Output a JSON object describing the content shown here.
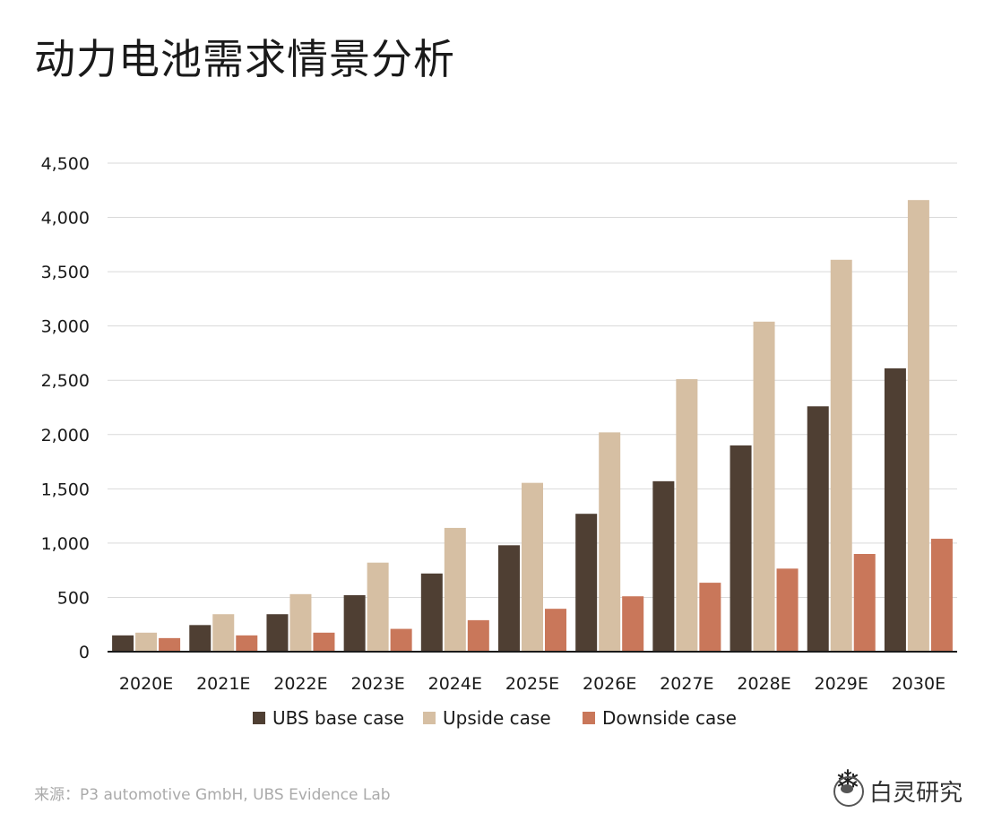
{
  "title": "动力电池需求情景分析",
  "source": "来源：P3 automotive GmbH, UBS Evidence Lab",
  "logo_text": "UBS",
  "watermark_text": "白灵研究",
  "colors": {
    "base": "#4f3f33",
    "upside": "#d6bfa3",
    "downside": "#c9775a",
    "grid": "#d9d9d9",
    "axis": "#1a1a1a",
    "logo": "#e04040"
  },
  "chart_data": {
    "type": "bar",
    "categories": [
      "2020E",
      "2021E",
      "2022E",
      "2023E",
      "2024E",
      "2025E",
      "2026E",
      "2027E",
      "2028E",
      "2029E",
      "2030E"
    ],
    "series": [
      {
        "name": "UBS base case",
        "color": "#4f3f33",
        "values": [
          150,
          245,
          345,
          520,
          720,
          980,
          1270,
          1570,
          1900,
          2260,
          2610
        ]
      },
      {
        "name": "Upside case",
        "color": "#d6bfa3",
        "values": [
          175,
          345,
          530,
          820,
          1140,
          1555,
          2020,
          2510,
          3040,
          3610,
          4160
        ]
      },
      {
        "name": "Downside case",
        "color": "#c9775a",
        "values": [
          125,
          150,
          175,
          210,
          290,
          395,
          510,
          635,
          765,
          900,
          1040
        ]
      }
    ],
    "yticks": [
      0,
      500,
      1000,
      1500,
      2000,
      2500,
      3000,
      3500,
      4000,
      4500
    ],
    "ytick_labels": [
      "0",
      "500",
      "1,000",
      "1,500",
      "2,000",
      "2,500",
      "3,000",
      "3,500",
      "4,000",
      "4,500"
    ],
    "ylim": [
      0,
      4500
    ],
    "grid": true,
    "legend_position": "bottom-center"
  }
}
